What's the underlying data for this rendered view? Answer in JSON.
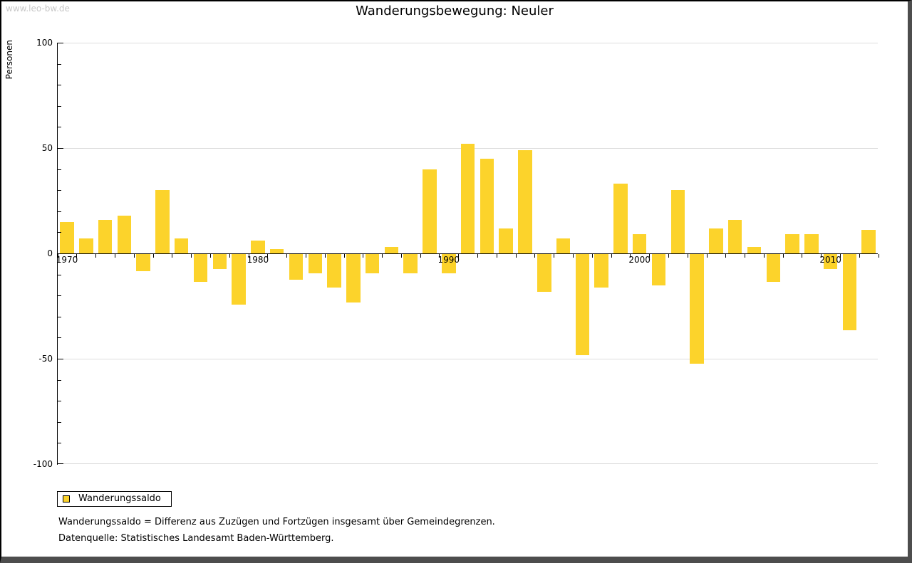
{
  "watermark": "www.leo-bw.de",
  "title": "Wanderungsbewegung: Neuler",
  "y_axis_label": "Personen",
  "legend": {
    "label": "Wanderungssaldo"
  },
  "footnotes": [
    "Wanderungssaldo = Differenz aus Zuzügen und Fortzügen insgesamt über Gemeindegrenzen.",
    "Datenquelle: Statistisches Landesamt Baden-Württemberg."
  ],
  "colors": {
    "bar": "#fcd32b",
    "grid": "#dcdcdc",
    "axis": "#000000",
    "watermark": "#c8c8c8",
    "window_shadow": "#4d4d4d"
  },
  "chart_data": {
    "type": "bar",
    "title": "Wanderungsbewegung: Neuler",
    "xlabel": "",
    "ylabel": "Personen",
    "ylim": [
      -100,
      100
    ],
    "y_ticks": [
      100,
      50,
      0,
      -50,
      -100
    ],
    "y_minor_step": 10,
    "grid": "horizontal",
    "legend_position": "bottom-left",
    "x_tick_labels": [
      1970,
      1980,
      1990,
      2000,
      2010
    ],
    "categories": [
      1970,
      1971,
      1972,
      1973,
      1974,
      1975,
      1976,
      1977,
      1978,
      1979,
      1980,
      1981,
      1982,
      1983,
      1984,
      1985,
      1986,
      1987,
      1988,
      1989,
      1990,
      1991,
      1992,
      1993,
      1994,
      1995,
      1996,
      1997,
      1998,
      1999,
      2000,
      2001,
      2002,
      2003,
      2004,
      2005,
      2006,
      2007,
      2008,
      2009,
      2010,
      2011,
      2012
    ],
    "series": [
      {
        "name": "Wanderungssaldo",
        "values": [
          15,
          7,
          16,
          18,
          -8,
          30,
          7,
          -13,
          -7,
          -24,
          6,
          2,
          -12,
          -9,
          -16,
          -23,
          -9,
          3,
          -9,
          40,
          -9,
          52,
          45,
          12,
          49,
          -18,
          7,
          -48,
          -16,
          33,
          9,
          -15,
          30,
          -52,
          12,
          16,
          3,
          -13,
          9,
          9,
          -7,
          -36,
          11
        ]
      }
    ]
  }
}
